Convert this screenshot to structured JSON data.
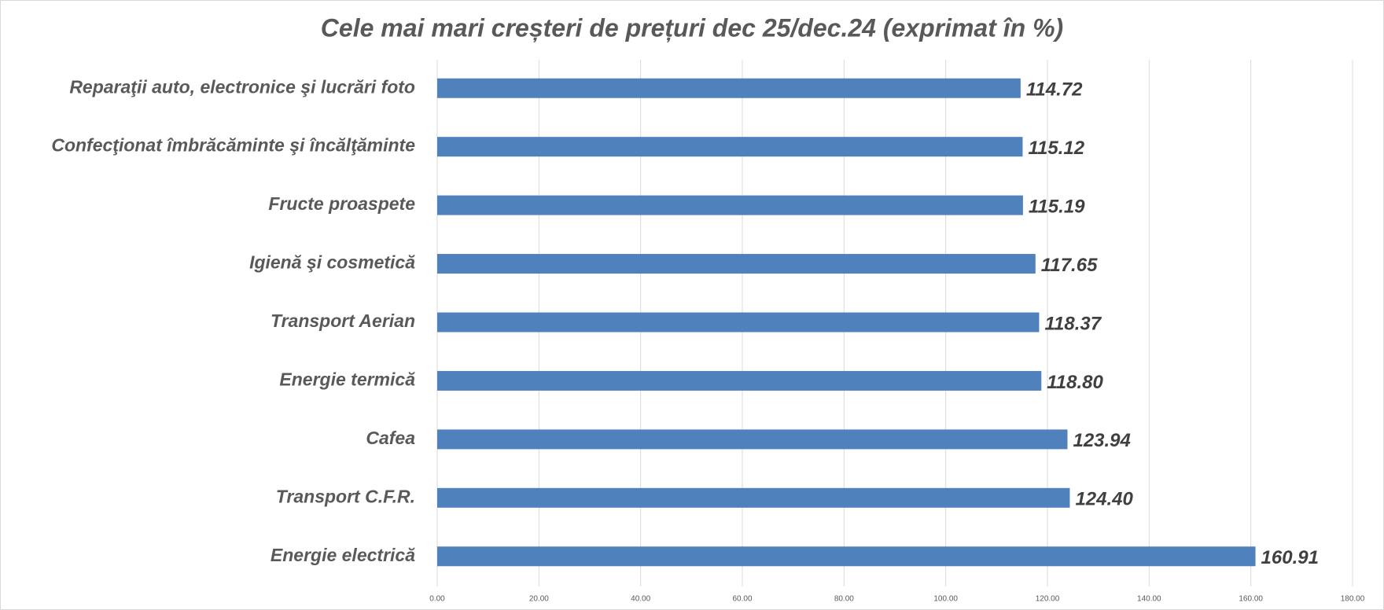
{
  "chart_data": {
    "type": "bar",
    "orientation": "horizontal",
    "title": "Cele mai mari creșteri de prețuri dec 25/dec.24 (exprimat în %)",
    "categories": [
      "Reparaţii auto, electronice şi lucrări foto",
      "Confecţionat îmbrăcăminte şi încălţăminte",
      "Fructe proaspete",
      "Igienă şi cosmetică",
      "Transport  Aerian",
      "Energie termică",
      "Cafea",
      "Transport C.F.R.",
      "Energie electrică"
    ],
    "values": [
      114.72,
      115.12,
      115.19,
      117.65,
      118.37,
      118.8,
      123.94,
      124.4,
      160.91
    ],
    "value_labels": [
      "114.72",
      "115.12",
      "115.19",
      "117.65",
      "118.37",
      "118.80",
      "123.94",
      "124.40",
      "160.91"
    ],
    "color": "#4f81bd",
    "xlim": [
      0,
      180
    ],
    "xticks": [
      {
        "value": 0,
        "label": "0.00"
      },
      {
        "value": 20,
        "label": "20.00"
      },
      {
        "value": 40,
        "label": "40.00"
      },
      {
        "value": 60,
        "label": "60.00"
      },
      {
        "value": 80,
        "label": "80.00"
      },
      {
        "value": 100,
        "label": "100.00"
      },
      {
        "value": 120,
        "label": "120.00"
      },
      {
        "value": 140,
        "label": "140.00"
      },
      {
        "value": 160,
        "label": "160.00"
      },
      {
        "value": 180,
        "label": "180.00"
      }
    ],
    "grid": true
  }
}
